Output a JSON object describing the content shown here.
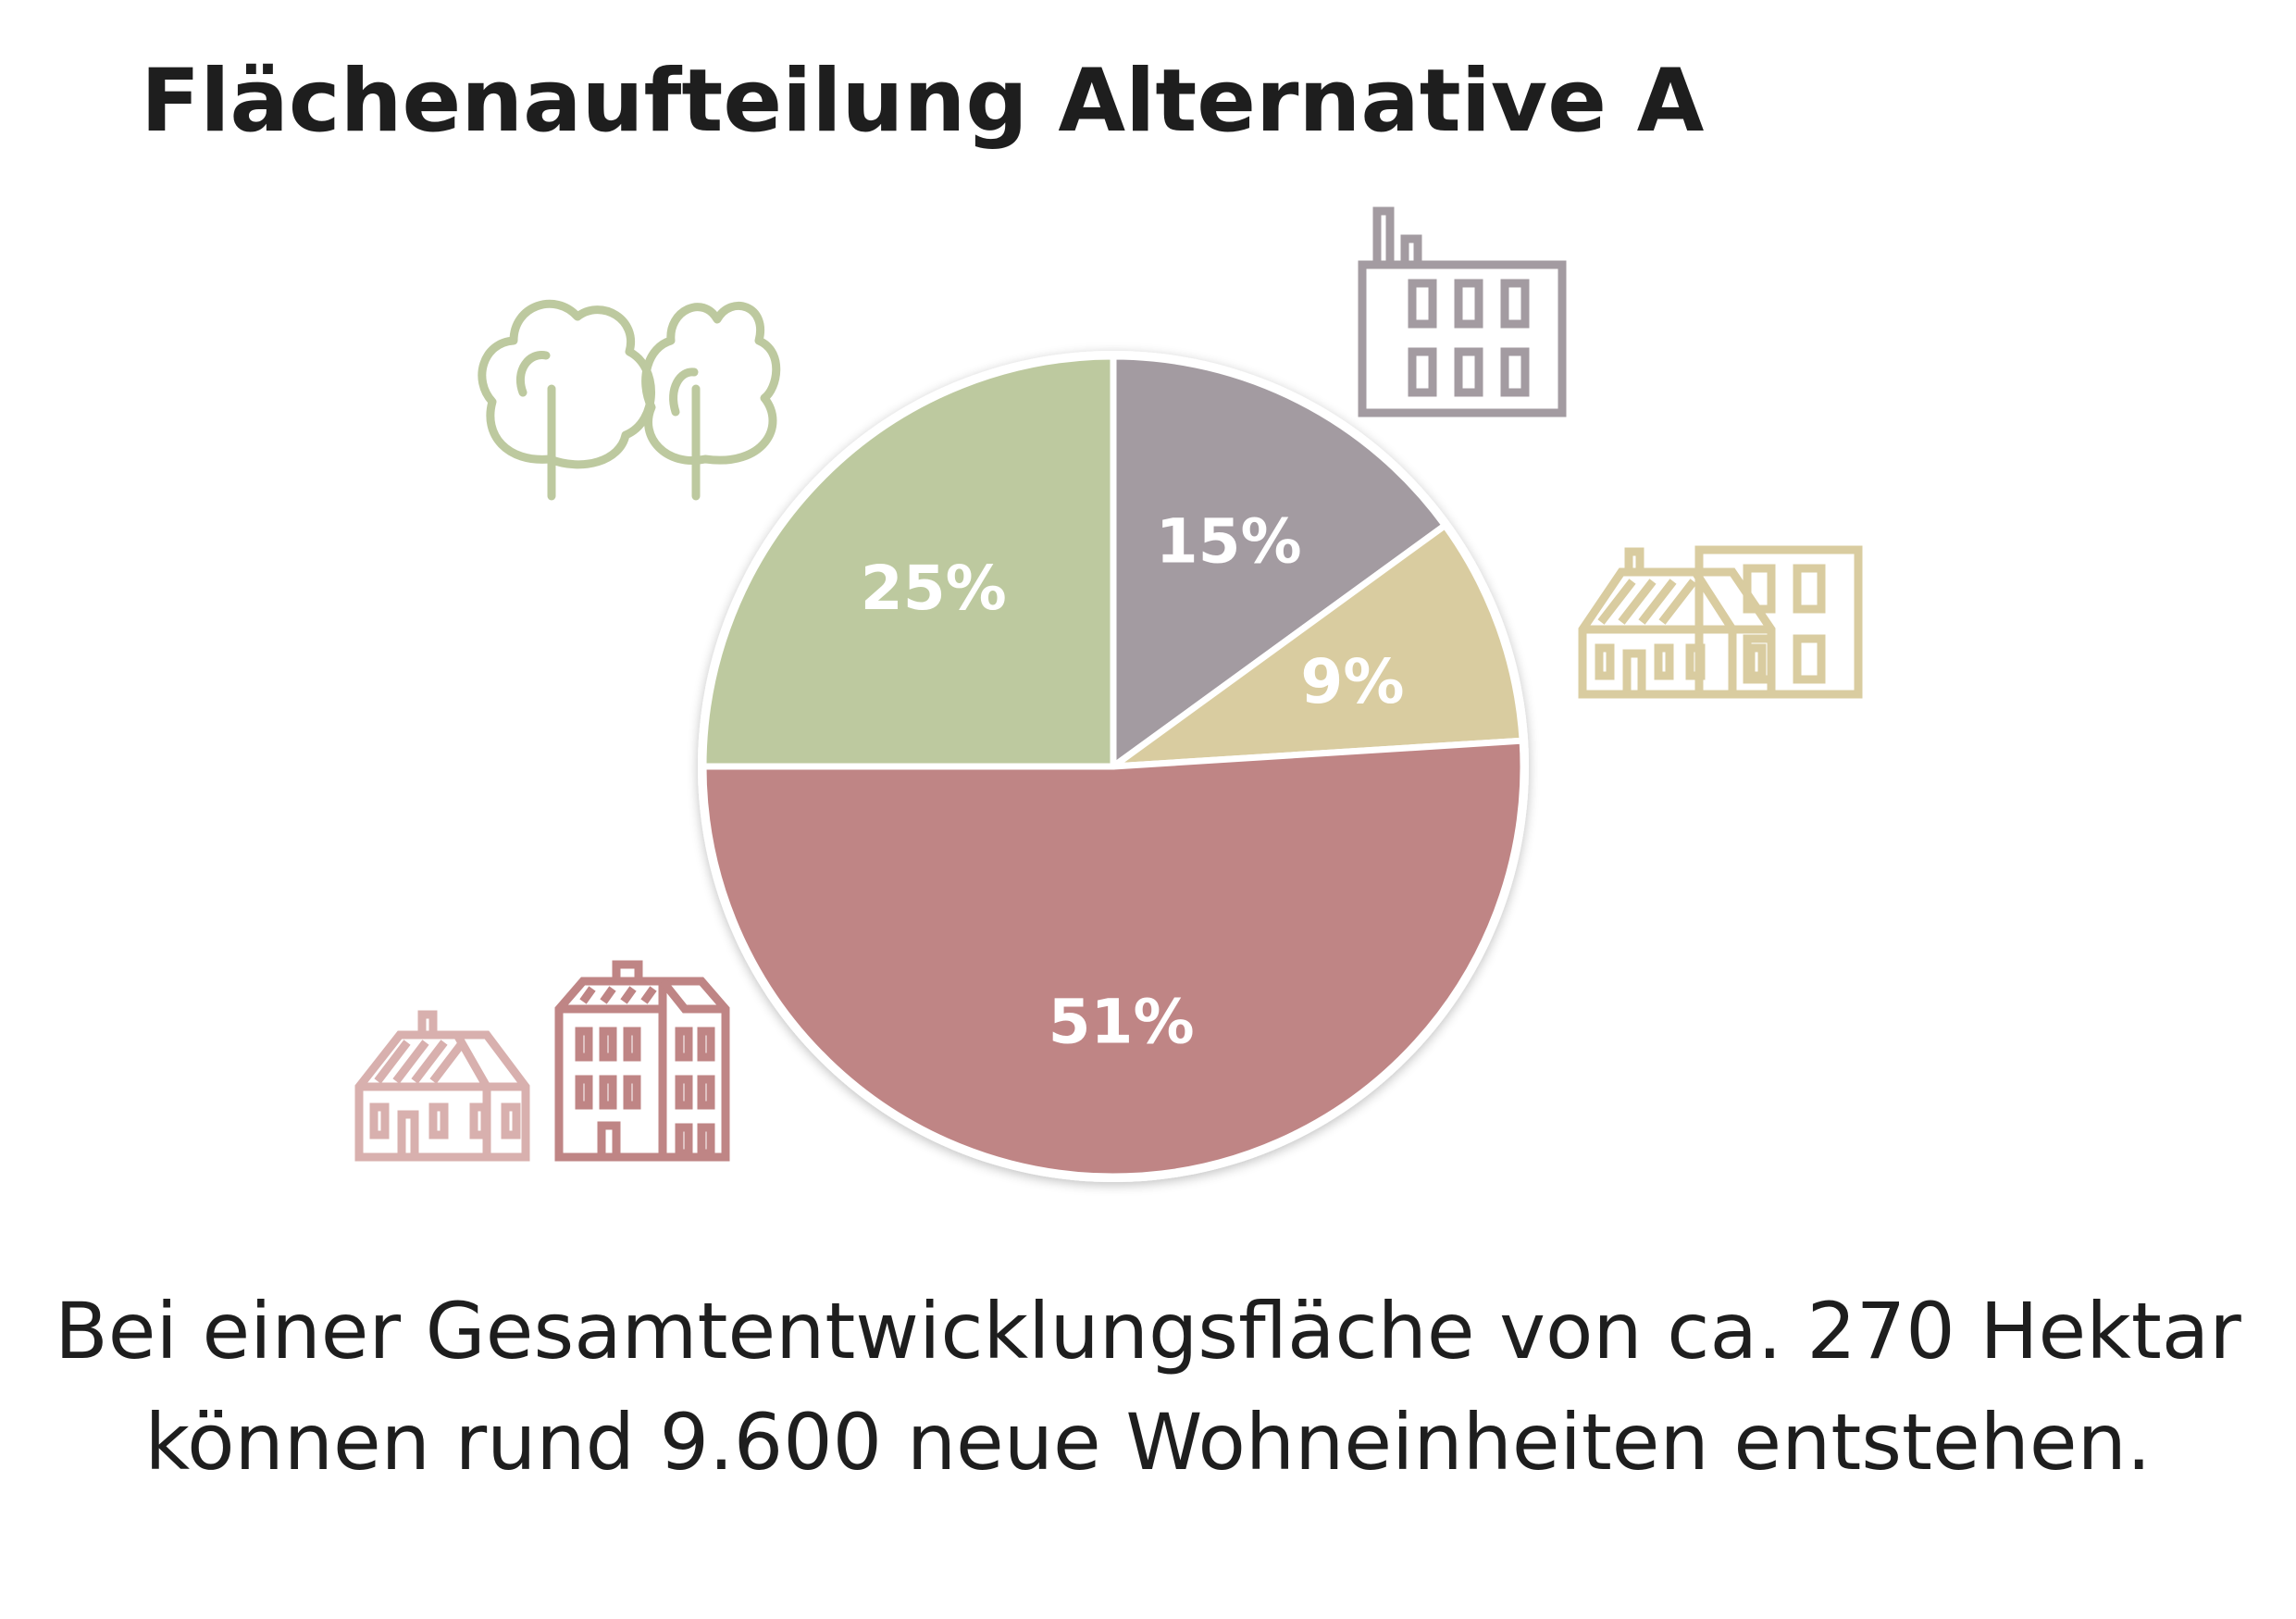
{
  "title": "Flächenaufteilung Alternative A",
  "chart_data": {
    "type": "pie",
    "slices": [
      {
        "value": 15,
        "label": "15%",
        "color": "#a39ba1",
        "icon": "factory-icon"
      },
      {
        "value": 9,
        "label": "9%",
        "color": "#d9cca0",
        "icon": "townhouses-icon"
      },
      {
        "value": 51,
        "label": "51%",
        "color": "#bf8585",
        "icon": "residential-buildings-icon"
      },
      {
        "value": 25,
        "label": "25%",
        "color": "#bdc99f",
        "icon": "trees-icon"
      }
    ]
  },
  "caption": {
    "line1": "Bei einer Gesamtentwicklungsfläche von ca. 270 Hektar",
    "line2": "können rund 9.600 neue Wohneinheiten entstehen."
  },
  "colors": {
    "green": "#bdc99f",
    "gray": "#a39ba1",
    "sand": "#d9cca0",
    "red": "#bf8585",
    "light_red": "#d8b0ae",
    "text": "#1e1e1e"
  }
}
